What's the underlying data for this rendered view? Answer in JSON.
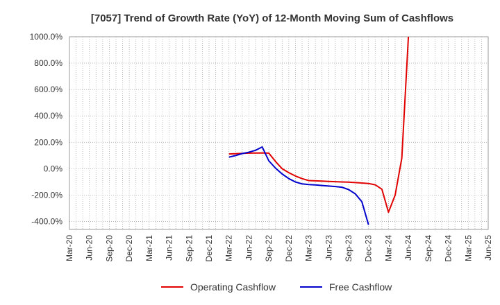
{
  "chart_data": {
    "type": "line",
    "title": "[7057]  Trend of Growth Rate (YoY) of 12-Month Moving Sum of Cashflows",
    "xlabel": "",
    "ylabel": "",
    "ylim": [
      -460,
      1000
    ],
    "yticks": [
      1000,
      800,
      600,
      400,
      200,
      0,
      -200,
      -400
    ],
    "ytick_labels": [
      "1000.0%",
      "800.0%",
      "600.0%",
      "400.0%",
      "200.0%",
      "0.0%",
      "-200.0%",
      "-400.0%"
    ],
    "xtick_labels": [
      "Mar-20",
      "Jun-20",
      "Sep-20",
      "Dec-20",
      "Mar-21",
      "Jun-21",
      "Sep-21",
      "Dec-21",
      "Mar-22",
      "Jun-22",
      "Sep-22",
      "Dec-22",
      "Mar-23",
      "Jun-23",
      "Sep-23",
      "Dec-23",
      "Mar-24",
      "Jun-24",
      "Sep-24",
      "Dec-24",
      "Mar-25",
      "Jun-25"
    ],
    "grid": true,
    "legend_position": "bottom",
    "series": [
      {
        "name": "Operating Cashflow",
        "color": "#e00000",
        "x": [
          "Mar-22",
          "Apr-22",
          "May-22",
          "Jun-22",
          "Jul-22",
          "Aug-22",
          "Sep-22",
          "Oct-22",
          "Nov-22",
          "Dec-22",
          "Jan-23",
          "Feb-23",
          "Mar-23",
          "Apr-23",
          "May-23",
          "Jun-23",
          "Jul-23",
          "Aug-23",
          "Sep-23",
          "Oct-23",
          "Nov-23",
          "Dec-23",
          "Jan-24",
          "Feb-24",
          "Mar-24",
          "Apr-24",
          "May-24",
          "Jun-24"
        ],
        "values": [
          112,
          114,
          116,
          118,
          119,
          120,
          118,
          55,
          0,
          -30,
          -55,
          -75,
          -90,
          -92,
          -94,
          -96,
          -98,
          -100,
          -102,
          -105,
          -108,
          -112,
          -122,
          -155,
          -330,
          -200,
          80,
          1000
        ]
      },
      {
        "name": "Free Cashflow",
        "color": "#0000cc",
        "x": [
          "Mar-22",
          "Apr-22",
          "May-22",
          "Jun-22",
          "Jul-22",
          "Aug-22",
          "Sep-22",
          "Oct-22",
          "Nov-22",
          "Dec-22",
          "Jan-23",
          "Feb-23",
          "Mar-23",
          "Apr-23",
          "May-23",
          "Jun-23",
          "Jul-23",
          "Aug-23",
          "Sep-23",
          "Oct-23",
          "Nov-23",
          "Dec-23",
          "Jan-24"
        ],
        "values": [
          88,
          100,
          115,
          125,
          140,
          165,
          60,
          5,
          -40,
          -75,
          -100,
          -115,
          -120,
          -123,
          -127,
          -131,
          -135,
          -140,
          -158,
          -190,
          -250,
          -425,
          null
        ]
      }
    ]
  }
}
